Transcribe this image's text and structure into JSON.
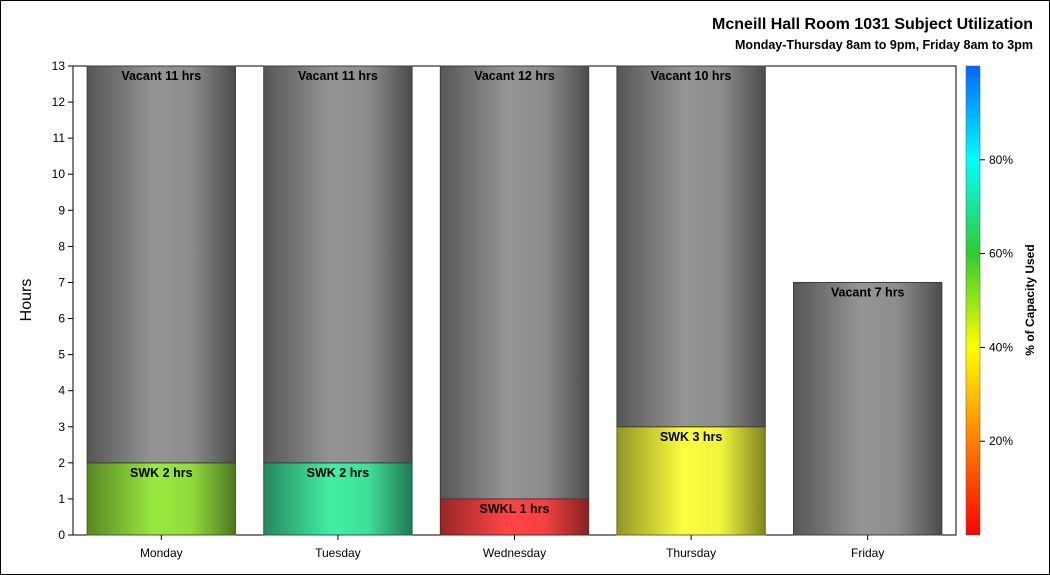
{
  "chart_data": {
    "type": "bar",
    "stacked": true,
    "title": "Mcneill Hall Room 1031 Subject Utilization",
    "subtitle": "Monday-Thursday 8am to 9pm, Friday 8am to 3pm",
    "ylabel": "Hours",
    "xlabel": "",
    "ylim": [
      0,
      13
    ],
    "yticks": [
      0,
      1,
      2,
      3,
      4,
      5,
      6,
      7,
      8,
      9,
      10,
      11,
      12,
      13
    ],
    "categories": [
      "Monday",
      "Tuesday",
      "Wednesday",
      "Thursday",
      "Friday"
    ],
    "bars": [
      {
        "category": "Monday",
        "segments": [
          {
            "label": "SWK 2 hrs",
            "value": 2,
            "color": "#8ed83a"
          },
          {
            "label": "Vacant 11 hrs",
            "value": 11,
            "color": "#8a8a8a"
          }
        ]
      },
      {
        "category": "Tuesday",
        "segments": [
          {
            "label": "SWK 2 hrs",
            "value": 2,
            "color": "#3ddc97"
          },
          {
            "label": "Vacant 11 hrs",
            "value": 11,
            "color": "#8a8a8a"
          }
        ]
      },
      {
        "category": "Wednesday",
        "segments": [
          {
            "label": "SWKL 1 hrs",
            "value": 1,
            "color": "#f04040"
          },
          {
            "label": "Vacant 12 hrs",
            "value": 12,
            "color": "#8a8a8a"
          }
        ]
      },
      {
        "category": "Thursday",
        "segments": [
          {
            "label": "SWK 3 hrs",
            "value": 3,
            "color": "#eaf03a"
          },
          {
            "label": "Vacant 10 hrs",
            "value": 10,
            "color": "#8a8a8a"
          }
        ]
      },
      {
        "category": "Friday",
        "segments": [
          {
            "label": "Vacant 7 hrs",
            "value": 7,
            "color": "#8a8a8a"
          }
        ]
      }
    ],
    "colorbar": {
      "label": "% of Capacity Used",
      "range": [
        0,
        100
      ],
      "ticks": [
        20,
        40,
        60,
        80
      ],
      "tick_labels": [
        "20%",
        "40%",
        "60%",
        "80%"
      ],
      "colors": [
        "#ff0000",
        "#ff7f00",
        "#ffff00",
        "#2fcc2f",
        "#00ffff",
        "#0066ff"
      ]
    },
    "grid": false,
    "legend": "right"
  }
}
